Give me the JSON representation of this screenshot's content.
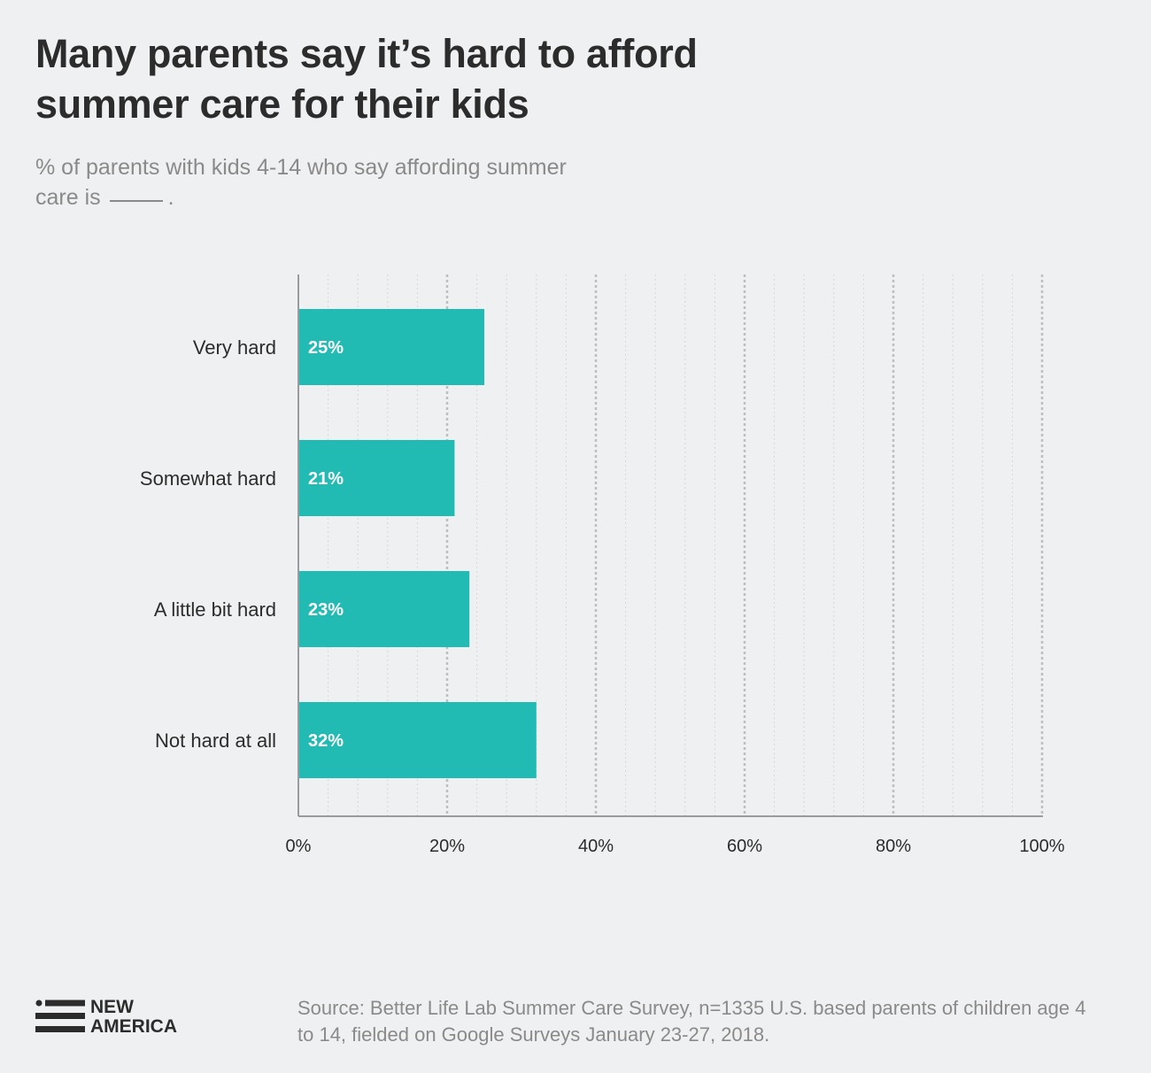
{
  "header": {
    "title": "Many parents say it’s hard to afford summer care for their kids",
    "subtitle_prefix": "% of parents with kids 4-14 who say affording summer care is",
    "subtitle_suffix": "."
  },
  "chart_data": {
    "type": "bar",
    "orientation": "horizontal",
    "categories": [
      "Very hard",
      "Somewhat hard",
      "A little bit hard",
      "Not hard at all"
    ],
    "values": [
      25,
      21,
      23,
      32
    ],
    "data_labels": [
      "25%",
      "21%",
      "23%",
      "32%"
    ],
    "xlim": [
      0,
      100
    ],
    "x_ticks": [
      0,
      20,
      40,
      60,
      80,
      100
    ],
    "x_tick_labels": [
      "0%",
      "20%",
      "40%",
      "60%",
      "80%",
      "100%"
    ],
    "grid": true,
    "bar_color": "#22bbb3"
  },
  "footer": {
    "logo_line1": "NEW",
    "logo_line2": "AMERICA",
    "source": "Source: Better Life Lab Summer Care Survey, n=1335 U.S. based parents of children age 4 to 14, fielded on Google Surveys January 23-27, 2018."
  }
}
